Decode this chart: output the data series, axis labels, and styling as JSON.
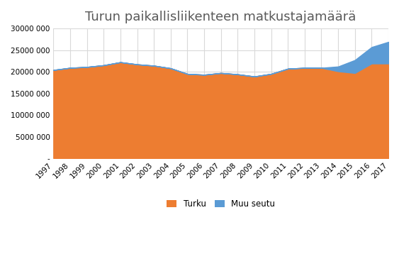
{
  "title": "Turun paikallisliikenteen matkustajamäärä",
  "years": [
    1997,
    1998,
    1999,
    2000,
    2001,
    2002,
    2003,
    2004,
    2005,
    2006,
    2007,
    2008,
    2009,
    2010,
    2011,
    2012,
    2013,
    2014,
    2015,
    2016,
    2017
  ],
  "turku": [
    20400000,
    20900000,
    21100000,
    21500000,
    22200000,
    21700000,
    21400000,
    20800000,
    19500000,
    19300000,
    19700000,
    19400000,
    18900000,
    19500000,
    20700000,
    20900000,
    20900000,
    20100000,
    19700000,
    21900000,
    21900000
  ],
  "muu_seutu": [
    0,
    0,
    0,
    0,
    0,
    0,
    0,
    0,
    0,
    0,
    0,
    0,
    0,
    0,
    0,
    0,
    0,
    1100000,
    3000000,
    3800000,
    5000000
  ],
  "turku_color": "#ED7D31",
  "muu_seutu_color": "#5B9BD5",
  "background_color": "#FFFFFF",
  "plot_bg_color": "#FFFFFF",
  "grid_color": "#D9D9D9",
  "ylim": [
    0,
    30000000
  ],
  "yticks": [
    0,
    5000000,
    10000000,
    15000000,
    20000000,
    25000000,
    30000000
  ],
  "title_fontsize": 13,
  "legend_labels": [
    "Turku",
    "Muu seutu"
  ],
  "tick_fontsize": 7.5,
  "legend_fontsize": 8.5,
  "title_color": "#595959"
}
